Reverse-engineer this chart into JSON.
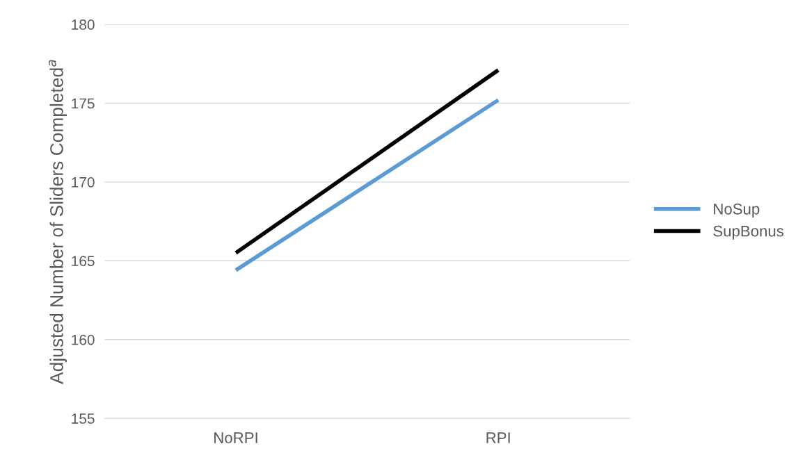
{
  "chart_data": {
    "type": "line",
    "ylabel": "Adjusted Number of Sliders Completed$^{a}$",
    "categories": [
      "NoRPI",
      "RPI"
    ],
    "series": [
      {
        "name": "NoSup",
        "color": "#5b9bd5",
        "values": [
          164.4,
          175.2
        ]
      },
      {
        "name": "SupBonus",
        "color": "#000000",
        "values": [
          165.5,
          177.1
        ]
      }
    ],
    "ylim": [
      155,
      180
    ],
    "yticks": [
      155,
      160,
      165,
      170,
      175,
      180
    ],
    "grid": "y",
    "legend": "right",
    "marker": "none",
    "line_style": "solid"
  }
}
